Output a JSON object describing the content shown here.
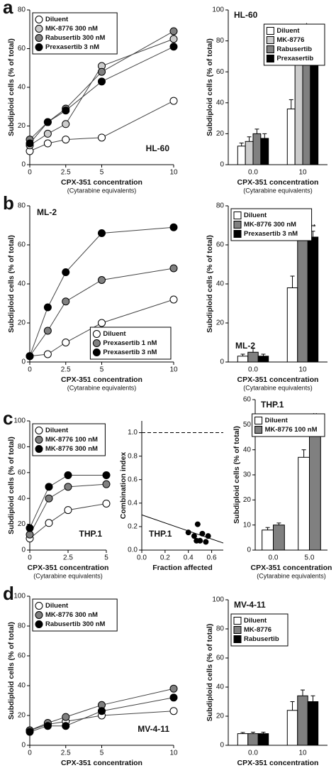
{
  "chart_data": [
    {
      "type": "line",
      "panel_label": "a",
      "annotation": "HL-60",
      "annotation_position": "lower-right",
      "legend": "upper-left",
      "xlabel": "CPX-351 concentration",
      "xlabel_sub": "(Cytarabine equivalents)",
      "ylabel": "Subdiploid cells (% of total)",
      "x": [
        0,
        1.25,
        2.5,
        5,
        10
      ],
      "xlim": [
        0,
        10
      ],
      "xticks": [
        0,
        2.5,
        5,
        10
      ],
      "ylim": [
        0,
        80
      ],
      "yticks": [
        0,
        20,
        40,
        60,
        80
      ],
      "series": [
        {
          "name": "Diluent",
          "color": "#ffffff",
          "values": [
            7,
            11,
            13,
            14,
            33
          ]
        },
        {
          "name": "MK-8776 300 nM",
          "color": "#cccccc",
          "values": [
            10,
            16,
            21,
            51,
            65
          ]
        },
        {
          "name": "Rabusertib 300 nM",
          "color": "#808080",
          "values": [
            13,
            22,
            29,
            48,
            69
          ]
        },
        {
          "name": "Prexasertib 3 nM",
          "color": "#000000",
          "values": [
            11,
            22,
            28,
            43,
            61
          ]
        }
      ]
    },
    {
      "type": "bar",
      "title": "HL-60",
      "legend": "upper-right",
      "xlabel": "CPX-351 concentration",
      "xlabel_sub": "(Cytarabine equivalents)",
      "ylabel": "Subdiploid cells (% of total)",
      "categories": [
        "0.0",
        "10"
      ],
      "ylim": [
        0,
        100
      ],
      "yticks": [
        0,
        20,
        40,
        60,
        80,
        100
      ],
      "series": [
        {
          "name": "Diluent",
          "color": "#ffffff",
          "values": [
            12,
            36
          ],
          "errors": [
            2,
            6
          ]
        },
        {
          "name": "MK-8776",
          "color": "#cccccc",
          "values": [
            15,
            72
          ],
          "errors": [
            3,
            8
          ],
          "markers": [
            null,
            "*"
          ]
        },
        {
          "name": "Rabusertib",
          "color": "#808080",
          "values": [
            20,
            82
          ],
          "errors": [
            3,
            5
          ],
          "markers": [
            null,
            "*"
          ]
        },
        {
          "name": "Prexasertib",
          "color": "#000000",
          "values": [
            17,
            72
          ],
          "errors": [
            3,
            5
          ],
          "markers": [
            null,
            "*"
          ]
        }
      ]
    },
    {
      "type": "line",
      "panel_label": "b",
      "annotation": "ML-2",
      "annotation_position": "upper-left",
      "legend": "lower-right",
      "xlabel": "CPX-351 concentration",
      "xlabel_sub": "(Cytarabine equivalents)",
      "ylabel": "Subdiploid cells (% of total)",
      "x": [
        0,
        1.25,
        2.5,
        5,
        10
      ],
      "xlim": [
        0,
        10
      ],
      "xticks": [
        0,
        2.5,
        5,
        10
      ],
      "ylim": [
        0,
        80
      ],
      "yticks": [
        0,
        20,
        40,
        60,
        80
      ],
      "series": [
        {
          "name": "Diluent",
          "color": "#ffffff",
          "values": [
            3,
            4,
            10,
            20,
            32
          ]
        },
        {
          "name": "Prexasertib 1 nM",
          "color": "#808080",
          "values": [
            3,
            16,
            31,
            42,
            48
          ]
        },
        {
          "name": "Prexasertib 3 nM",
          "color": "#000000",
          "values": [
            3,
            28,
            46,
            66,
            69
          ]
        }
      ]
    },
    {
      "type": "bar",
      "annotation": "ML-2",
      "legend": "upper-left",
      "xlabel": "CPX-351 concentration",
      "xlabel_sub": "(Cytarabine equivalents)",
      "ylabel": "Subdiploid cells (% of total)",
      "categories": [
        "0.0",
        "10"
      ],
      "ylim": [
        0,
        80
      ],
      "yticks": [
        0,
        20,
        40,
        60,
        80
      ],
      "series": [
        {
          "name": "Diluent",
          "color": "#ffffff",
          "values": [
            3,
            38
          ],
          "errors": [
            1,
            6
          ]
        },
        {
          "name": "MK-8776 300 nM",
          "color": "#808080",
          "values": [
            5,
            65
          ],
          "errors": [
            2,
            3
          ],
          "markers": [
            null,
            "**"
          ]
        },
        {
          "name": "Prexasertib 3 nM",
          "color": "#000000",
          "values": [
            3,
            64
          ],
          "errors": [
            1,
            3
          ],
          "markers": [
            null,
            "**"
          ]
        }
      ]
    },
    {
      "type": "line",
      "panel_label": "c",
      "annotation": "THP.1",
      "annotation_position": "lower-right",
      "legend": "upper-left",
      "xlabel": "CPX-351 concentration",
      "xlabel_sub": "(Cytarabine equivalents)",
      "ylabel": "Subdiploid cells (% of total)",
      "x": [
        0,
        1.25,
        2.5,
        5
      ],
      "xlim": [
        0,
        5
      ],
      "xticks": [
        0,
        2.5,
        5
      ],
      "ylim": [
        0,
        100
      ],
      "yticks": [
        0,
        20,
        40,
        60,
        80,
        100
      ],
      "series": [
        {
          "name": "Diluent",
          "color": "#ffffff",
          "values": [
            9,
            21,
            31,
            36
          ]
        },
        {
          "name": "MK-8776 100 nM",
          "color": "#808080",
          "values": [
            12,
            40,
            49,
            51
          ]
        },
        {
          "name": "MK-8776 300 nM",
          "color": "#000000",
          "values": [
            17,
            49,
            58,
            58
          ]
        }
      ]
    },
    {
      "type": "scatter",
      "annotation": "THP.1",
      "annotation_position": "lower-left",
      "xlabel": "Fraction affected",
      "ylabel": "Combination index",
      "x": [
        0.4,
        0.45,
        0.47,
        0.48,
        0.5,
        0.52,
        0.55,
        0.57
      ],
      "values": [
        0.15,
        0.12,
        0.08,
        0.22,
        0.08,
        0.14,
        0.07,
        0.12
      ],
      "color": "#000000",
      "reference_y": 1.0,
      "fit_x": [
        0,
        0.7
      ],
      "fit_y": [
        0.3,
        0.06
      ],
      "xlim": [
        0,
        0.7
      ],
      "xticks": [
        {
          "value": 0,
          "label": "0.0"
        },
        0.2,
        0.4,
        0.6
      ],
      "ylim": [
        0,
        1.1
      ],
      "yticks": [
        {
          "value": 0,
          "label": "0.0"
        },
        0.2,
        0.4,
        0.6,
        0.8,
        {
          "value": 1,
          "label": "1.0"
        }
      ]
    },
    {
      "type": "bar",
      "title": "THP.1",
      "legend": "upper-right",
      "xlabel": "CPX-351 concentration",
      "xlabel_sub": "(Cytarabine equivalents)",
      "ylabel": "Subdiploid cells (% of total)",
      "categories": [
        "0.0",
        "5.0"
      ],
      "ylim": [
        0,
        60
      ],
      "yticks": [
        0,
        10,
        20,
        30,
        40,
        50,
        60
      ],
      "series": [
        {
          "name": "Diluent",
          "color": "#ffffff",
          "values": [
            8,
            37
          ],
          "errors": [
            1,
            3
          ]
        },
        {
          "name": "MK-8776 100 nM",
          "color": "#808080",
          "values": [
            10,
            51
          ],
          "errors": [
            0.8,
            0.8
          ],
          "markers": [
            null,
            "**"
          ]
        }
      ]
    },
    {
      "type": "line",
      "panel_label": "d",
      "annotation": "MV-4-11",
      "annotation_position": "lower-right",
      "legend": "upper-left",
      "xlabel": "CPX-351 concentration",
      "xlabel_sub": "(Cytarabine equivalents)",
      "ylabel": "Subdiploid cells (% of total)",
      "x": [
        0,
        1.25,
        2.5,
        5,
        10
      ],
      "xlim": [
        0,
        10
      ],
      "xticks": [
        0,
        2.5,
        5,
        10
      ],
      "ylim": [
        0,
        100
      ],
      "yticks": [
        0,
        20,
        40,
        60,
        80,
        100
      ],
      "series": [
        {
          "name": "Diluent",
          "color": "#ffffff",
          "values": [
            10,
            14,
            16,
            20,
            23
          ]
        },
        {
          "name": "MK-8776 300 nM",
          "color": "#808080",
          "values": [
            10,
            15,
            19,
            27,
            38
          ]
        },
        {
          "name": "Rabusertib 300 nM",
          "color": "#000000",
          "values": [
            9,
            13,
            13,
            23,
            32
          ]
        }
      ]
    },
    {
      "type": "bar",
      "title": "MV-4-11",
      "legend": "upper-left",
      "xlabel": "CPX-351 concentration",
      "xlabel_sub": "(Cytarabine equivalents)",
      "ylabel": "Subdiploid cells (% of total)",
      "categories": [
        "0.0",
        "10"
      ],
      "ylim": [
        0,
        100
      ],
      "yticks": [
        0,
        20,
        40,
        60,
        80,
        100
      ],
      "series": [
        {
          "name": "Diluent",
          "color": "#ffffff",
          "values": [
            8,
            24
          ],
          "errors": [
            0.8,
            6
          ]
        },
        {
          "name": "MK-8776",
          "color": "#808080",
          "values": [
            8,
            34
          ],
          "errors": [
            1,
            4
          ]
        },
        {
          "name": "Rabusertib",
          "color": "#000000",
          "values": [
            8,
            30
          ],
          "errors": [
            1,
            4
          ]
        }
      ]
    }
  ]
}
